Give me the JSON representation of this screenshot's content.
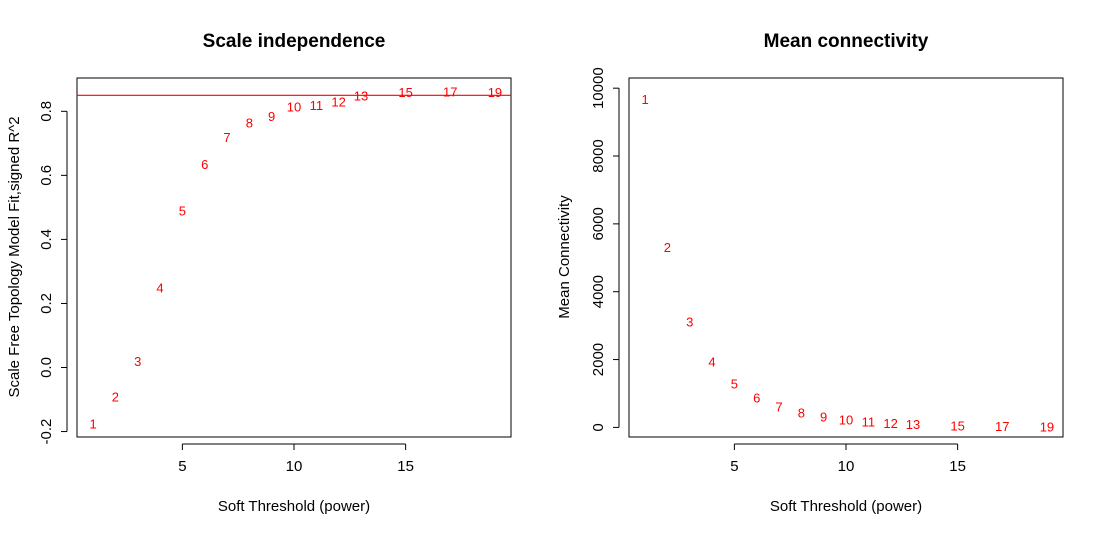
{
  "chart_data": [
    {
      "type": "scatter",
      "marker": "text-labels",
      "title": "Scale independence",
      "xlabel": "Soft Threshold (power)",
      "ylabel": "Scale Free Topology Model Fit,signed R^2",
      "xlim": [
        0.28,
        19.72
      ],
      "ylim": [
        -0.217,
        0.904
      ],
      "xticks": [
        5,
        10,
        15
      ],
      "yticks": [
        -0.2,
        0.0,
        0.2,
        0.4,
        0.6,
        0.8
      ],
      "ytick_labels": [
        "-0.2",
        "0.0",
        "0.2",
        "0.4",
        "0.6",
        "0.8"
      ],
      "hline": {
        "y": 0.85,
        "color": "#ff0000"
      },
      "point_color": "#ff0000",
      "points": [
        {
          "x": 1,
          "y": -0.175,
          "label": "1"
        },
        {
          "x": 2,
          "y": -0.09,
          "label": "2"
        },
        {
          "x": 3,
          "y": 0.02,
          "label": "3"
        },
        {
          "x": 4,
          "y": 0.25,
          "label": "4"
        },
        {
          "x": 5,
          "y": 0.49,
          "label": "5"
        },
        {
          "x": 6,
          "y": 0.635,
          "label": "6"
        },
        {
          "x": 7,
          "y": 0.72,
          "label": "7"
        },
        {
          "x": 8,
          "y": 0.765,
          "label": "8"
        },
        {
          "x": 9,
          "y": 0.785,
          "label": "9"
        },
        {
          "x": 10,
          "y": 0.815,
          "label": "10"
        },
        {
          "x": 11,
          "y": 0.82,
          "label": "11"
        },
        {
          "x": 12,
          "y": 0.83,
          "label": "12"
        },
        {
          "x": 13,
          "y": 0.85,
          "label": "13"
        },
        {
          "x": 15,
          "y": 0.86,
          "label": "15"
        },
        {
          "x": 17,
          "y": 0.862,
          "label": "17"
        },
        {
          "x": 19,
          "y": 0.86,
          "label": "19"
        }
      ]
    },
    {
      "type": "scatter",
      "marker": "text-labels",
      "title": "Mean connectivity",
      "xlabel": "Soft Threshold (power)",
      "ylabel": "Mean Connectivity",
      "xlim": [
        0.28,
        19.72
      ],
      "ylim": [
        -283,
        10300
      ],
      "xticks": [
        5,
        10,
        15
      ],
      "yticks": [
        0,
        2000,
        4000,
        6000,
        8000,
        10000
      ],
      "ytick_labels": [
        "0",
        "2000",
        "4000",
        "6000",
        "8000",
        "10000"
      ],
      "point_color": "#ff0000",
      "points": [
        {
          "x": 1,
          "y": 9680,
          "label": "1"
        },
        {
          "x": 2,
          "y": 5320,
          "label": "2"
        },
        {
          "x": 3,
          "y": 3120,
          "label": "3"
        },
        {
          "x": 4,
          "y": 1950,
          "label": "4"
        },
        {
          "x": 5,
          "y": 1290,
          "label": "5"
        },
        {
          "x": 6,
          "y": 880,
          "label": "6"
        },
        {
          "x": 7,
          "y": 610,
          "label": "7"
        },
        {
          "x": 8,
          "y": 440,
          "label": "8"
        },
        {
          "x": 9,
          "y": 320,
          "label": "9"
        },
        {
          "x": 10,
          "y": 230,
          "label": "10"
        },
        {
          "x": 11,
          "y": 180,
          "label": "11"
        },
        {
          "x": 12,
          "y": 135,
          "label": "12"
        },
        {
          "x": 13,
          "y": 100,
          "label": "13"
        },
        {
          "x": 15,
          "y": 60,
          "label": "15"
        },
        {
          "x": 17,
          "y": 40,
          "label": "17"
        },
        {
          "x": 19,
          "y": 30,
          "label": "19"
        }
      ]
    }
  ]
}
